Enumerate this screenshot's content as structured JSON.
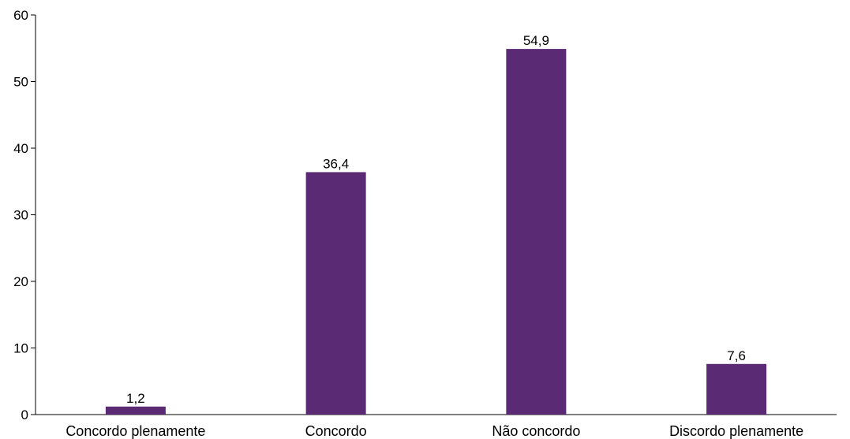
{
  "chart_data": {
    "type": "bar",
    "title": "",
    "xlabel": "",
    "ylabel": "",
    "categories": [
      "Concordo plenamente",
      "Concordo",
      "Não concordo",
      "Discordo plenamente"
    ],
    "values": [
      1.2,
      36.4,
      54.9,
      7.6
    ],
    "data_labels": [
      "1,2",
      "36,4",
      "54,9",
      "7,6"
    ],
    "ylim": [
      0,
      60
    ],
    "yticks": [
      0,
      10,
      20,
      30,
      40,
      50,
      60
    ],
    "ytick_labels": [
      "0",
      "10",
      "20",
      "30",
      "40",
      "50",
      "60"
    ],
    "grid": false,
    "legend": "none",
    "colors": {
      "bar": "#5a2b74",
      "axis": "#000000",
      "text": "#000000"
    }
  }
}
